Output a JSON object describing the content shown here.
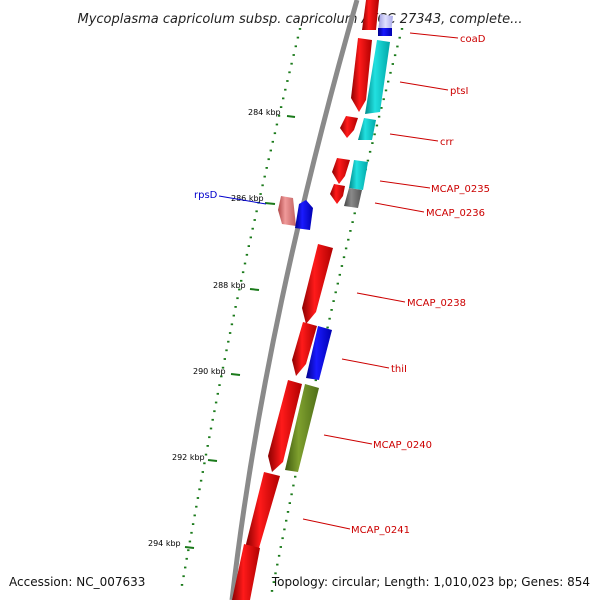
{
  "title": "Mycoplasma capricolum subsp. capricolum ATCC 27343, complete...",
  "footer": {
    "accession": "Accession: NC_007633",
    "summary": "Topology: circular; Length: 1,010,023 bp; Genes: 854"
  },
  "ruler_labels": [
    "284 kbp",
    "286 kbp",
    "288 kbp",
    "290 kbp",
    "292 kbp",
    "294 kbp"
  ],
  "gene_labels": [
    {
      "id": "coaD",
      "text": "coaD",
      "color": "#cc0000"
    },
    {
      "id": "ptsI",
      "text": "ptsI",
      "color": "#cc0000"
    },
    {
      "id": "crr",
      "text": "crr",
      "color": "#cc0000"
    },
    {
      "id": "mcap-0235",
      "text": "MCAP_0235",
      "color": "#cc0000"
    },
    {
      "id": "mcap-0236",
      "text": "MCAP_0236",
      "color": "#cc0000"
    },
    {
      "id": "rpsd",
      "text": "rpsD",
      "color": "#0000cc"
    },
    {
      "id": "mcap-0238",
      "text": "MCAP_0238",
      "color": "#cc0000"
    },
    {
      "id": "thil",
      "text": "thiI",
      "color": "#cc0000"
    },
    {
      "id": "mcap-0240",
      "text": "MCAP_0240",
      "color": "#cc0000"
    },
    {
      "id": "mcap-0241",
      "text": "MCAP_0241",
      "color": "#cc0000"
    }
  ],
  "colors": {
    "forward_cds": "#ff0000",
    "reverse_cds": "#0000ff",
    "cyan_feature": "#00cccc",
    "olive_feature": "#6b8e23",
    "gray_feature": "#777777",
    "pink_feature": "#e87878",
    "backbone": "#777777",
    "ruler_tick": "#1a7a1a"
  }
}
